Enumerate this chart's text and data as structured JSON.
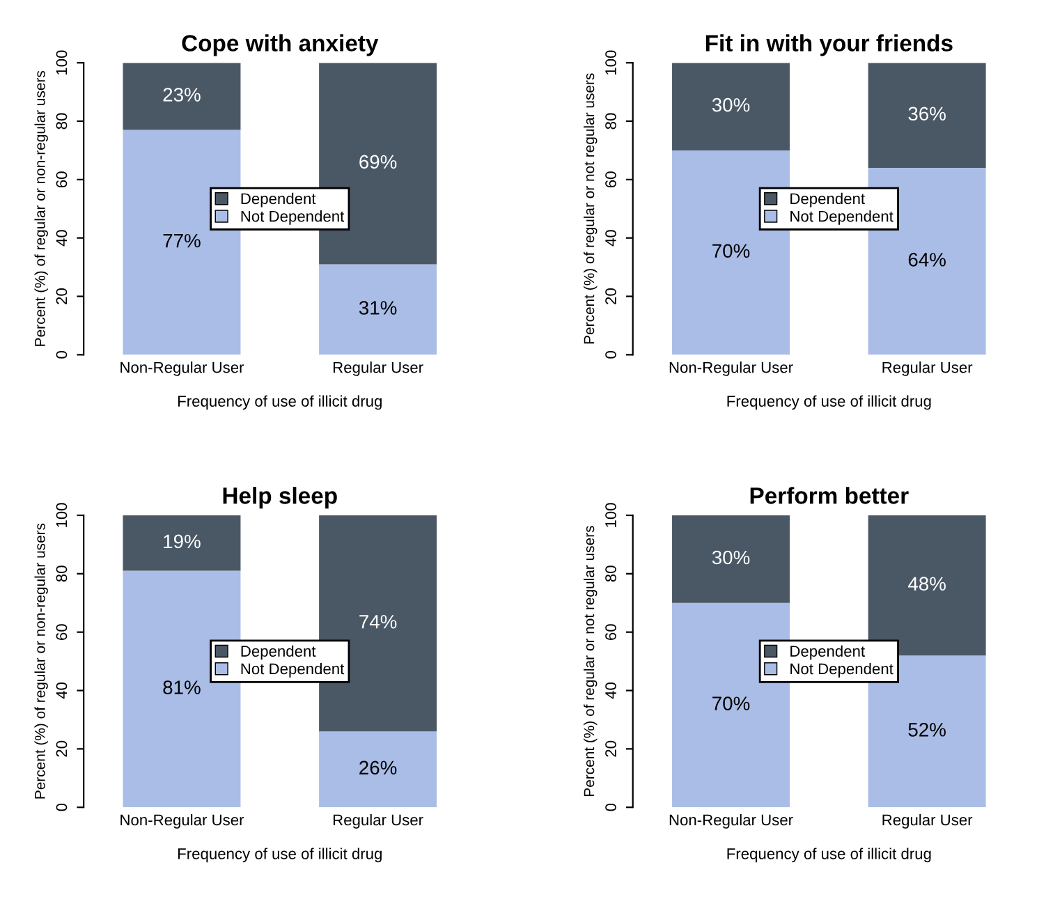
{
  "chart_data": [
    {
      "type": "bar",
      "stacked": true,
      "title": "Cope with anxiety",
      "xlabel": "Frequency of use of illicit drug",
      "ylabel": "Percent (%) of regular or non-regular users",
      "categories": [
        "Non-Regular User",
        "Regular User"
      ],
      "ylim": [
        0,
        100
      ],
      "yticks": [
        0,
        20,
        40,
        60,
        80,
        100
      ],
      "legend": "center",
      "series": [
        {
          "name": "Not Dependent",
          "color": "#aabde6",
          "values": [
            77,
            31
          ],
          "value_labels": [
            "77%",
            "31%"
          ]
        },
        {
          "name": "Dependent",
          "color": "#4a5866",
          "values": [
            23,
            69
          ],
          "value_labels": [
            "23%",
            "69%"
          ]
        }
      ]
    },
    {
      "type": "bar",
      "stacked": true,
      "title": "Fit in with your friends",
      "xlabel": "Frequency of use of illicit drug",
      "ylabel": "Percent (%) of regular or not regular users",
      "categories": [
        "Non-Regular User",
        "Regular User"
      ],
      "ylim": [
        0,
        100
      ],
      "yticks": [
        0,
        20,
        40,
        60,
        80,
        100
      ],
      "legend": "center",
      "series": [
        {
          "name": "Not Dependent",
          "color": "#aabde6",
          "values": [
            70,
            64
          ],
          "value_labels": [
            "70%",
            "64%"
          ]
        },
        {
          "name": "Dependent",
          "color": "#4a5866",
          "values": [
            30,
            36
          ],
          "value_labels": [
            "30%",
            "36%"
          ]
        }
      ]
    },
    {
      "type": "bar",
      "stacked": true,
      "title": "Help sleep",
      "xlabel": "Frequency of use of illicit drug",
      "ylabel": "Percent (%) of regular or non-regular users",
      "categories": [
        "Non-Regular User",
        "Regular User"
      ],
      "ylim": [
        0,
        100
      ],
      "yticks": [
        0,
        20,
        40,
        60,
        80,
        100
      ],
      "legend": "center",
      "series": [
        {
          "name": "Not Dependent",
          "color": "#aabde6",
          "values": [
            81,
            26
          ],
          "value_labels": [
            "81%",
            "26%"
          ]
        },
        {
          "name": "Dependent",
          "color": "#4a5866",
          "values": [
            19,
            74
          ],
          "value_labels": [
            "19%",
            "74%"
          ]
        }
      ]
    },
    {
      "type": "bar",
      "stacked": true,
      "title": "Perform better",
      "xlabel": "Frequency of use of illicit drug",
      "ylabel": "Percent (%) of regular or not regular users",
      "categories": [
        "Non-Regular User",
        "Regular User"
      ],
      "ylim": [
        0,
        100
      ],
      "yticks": [
        0,
        20,
        40,
        60,
        80,
        100
      ],
      "legend": "center",
      "series": [
        {
          "name": "Not Dependent",
          "color": "#aabde6",
          "values": [
            70,
            52
          ],
          "value_labels": [
            "70%",
            "52%"
          ]
        },
        {
          "name": "Dependent",
          "color": "#4a5866",
          "values": [
            30,
            48
          ],
          "value_labels": [
            "30%",
            "48%"
          ]
        }
      ]
    }
  ]
}
